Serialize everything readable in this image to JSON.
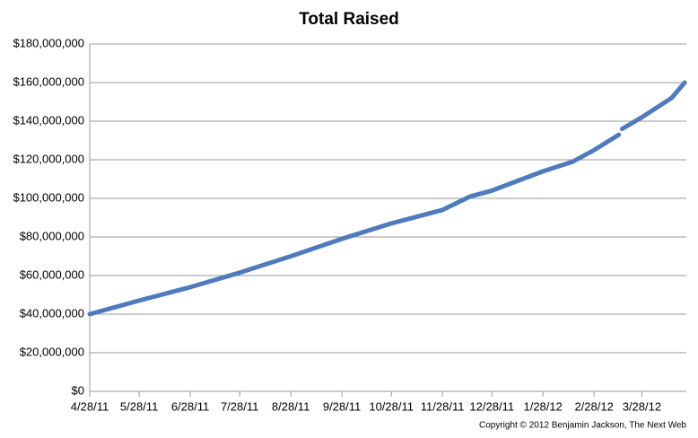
{
  "chart_data": {
    "type": "line",
    "title": "Total Raised",
    "note": "Copyright © 2012 Benjamin Jackson, The Next Web",
    "x": [
      "2011-04-28",
      "2011-05-28",
      "2011-06-28",
      "2011-07-28",
      "2011-08-28",
      "2011-09-28",
      "2011-10-28",
      "2011-11-28",
      "2011-12-15",
      "2011-12-28",
      "2012-01-28",
      "2012-02-15",
      "2012-02-28",
      "2012-03-14",
      "2012-03-15",
      "2012-03-16",
      "2012-03-28",
      "2012-04-15",
      "2012-04-23"
    ],
    "series": [
      {
        "name": "Total Raised",
        "color": "#4f7bbd",
        "values": [
          40000000,
          47000000,
          54000000,
          61500000,
          70000000,
          79000000,
          87000000,
          94000000,
          101000000,
          104000000,
          114000000,
          119000000,
          125000000,
          133000000,
          null,
          136000000,
          142000000,
          152000000,
          160000000
        ]
      }
    ],
    "xlim": [
      "2011-04-28",
      "2012-04-24"
    ],
    "xticks": [
      {
        "value": "2011-04-28",
        "label": "4/28/11"
      },
      {
        "value": "2011-05-28",
        "label": "5/28/11"
      },
      {
        "value": "2011-06-28",
        "label": "6/28/11"
      },
      {
        "value": "2011-07-28",
        "label": "7/28/11"
      },
      {
        "value": "2011-08-28",
        "label": "8/28/11"
      },
      {
        "value": "2011-09-28",
        "label": "9/28/11"
      },
      {
        "value": "2011-10-28",
        "label": "10/28/11"
      },
      {
        "value": "2011-11-28",
        "label": "11/28/11"
      },
      {
        "value": "2011-12-28",
        "label": "12/28/11"
      },
      {
        "value": "2012-01-28",
        "label": "1/28/12"
      },
      {
        "value": "2012-02-28",
        "label": "2/28/12"
      },
      {
        "value": "2012-03-28",
        "label": "3/28/12"
      }
    ],
    "ylim": [
      0,
      180000000
    ],
    "yticks": [
      {
        "value": 0,
        "label": "$0"
      },
      {
        "value": 20000000,
        "label": "$20,000,000"
      },
      {
        "value": 40000000,
        "label": "$40,000,000"
      },
      {
        "value": 60000000,
        "label": "$60,000,000"
      },
      {
        "value": 80000000,
        "label": "$80,000,000"
      },
      {
        "value": 100000000,
        "label": "$100,000,000"
      },
      {
        "value": 120000000,
        "label": "$120,000,000"
      },
      {
        "value": 140000000,
        "label": "$140,000,000"
      },
      {
        "value": 160000000,
        "label": "$160,000,000"
      },
      {
        "value": 180000000,
        "label": "$180,000,000"
      }
    ],
    "grid": true
  }
}
